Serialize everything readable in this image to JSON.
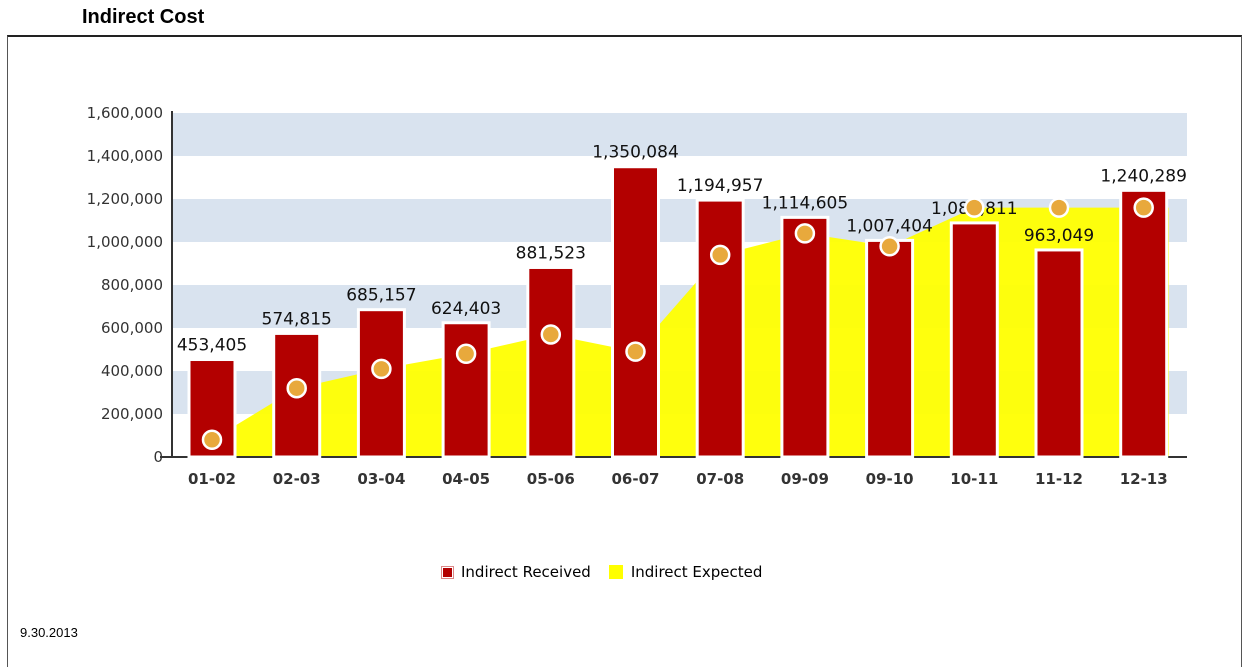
{
  "page_title": "Indirect Cost",
  "footer": {
    "date": "9.30.2013"
  },
  "chart_data": {
    "type": "bar",
    "categories": [
      "01-02",
      "02-03",
      "03-04",
      "04-05",
      "05-06",
      "06-07",
      "07-08",
      "09-09",
      "09-10",
      "10-11",
      "11-12",
      "12-13"
    ],
    "series": [
      {
        "name": "Indirect Received",
        "type": "bar",
        "color": "#b30000",
        "values": [
          453405,
          574815,
          685157,
          624403,
          881523,
          1350084,
          1194957,
          1114605,
          1007404,
          1088811,
          963049,
          1240289
        ],
        "labels": [
          "453,405",
          "574,815",
          "685,157",
          "624,403",
          "881,523",
          "1,350,084",
          "1,194,957",
          "1,114,605",
          "1,007,404",
          "1,088,811",
          "963,049",
          "1,240,289"
        ]
      },
      {
        "name": "Indirect Expected",
        "type": "area",
        "color": "#ffff00",
        "values": [
          80000,
          320000,
          410000,
          480000,
          570000,
          490000,
          940000,
          1040000,
          980000,
          1160000,
          1160000,
          1160000
        ]
      }
    ],
    "marker_color": "#e8a93c",
    "ylim": [
      0,
      1600000
    ],
    "yticks": [
      0,
      200000,
      400000,
      600000,
      800000,
      1000000,
      1200000,
      1400000,
      1600000
    ],
    "ytick_labels": [
      "0",
      "200,000",
      "400,000",
      "600,000",
      "800,000",
      "1,000,000",
      "1,200,000",
      "1,400,000",
      "1,600,000"
    ],
    "band_color": "#d9e3ef",
    "grid": false,
    "legend": "bottom-center"
  }
}
